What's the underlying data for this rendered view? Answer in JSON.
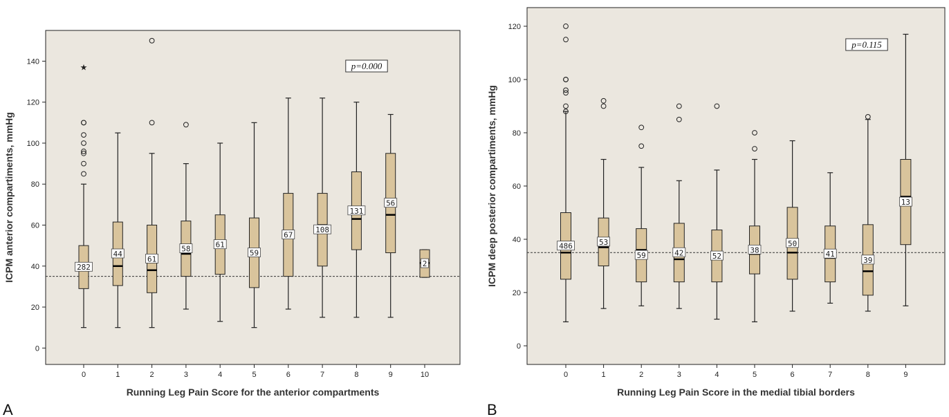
{
  "panels": [
    "A",
    "B"
  ],
  "chart_data": [
    {
      "type": "box",
      "panel": "A",
      "title": "",
      "xlabel": "Running Leg Pain Score for the anterior compartments",
      "ylabel": "ICPM anterior compartiments, mmHg",
      "ylim": [
        -8,
        155
      ],
      "yticks": [
        0,
        20,
        40,
        60,
        80,
        100,
        120,
        140
      ],
      "reference_line": 35,
      "annotation": "p=0.000",
      "categories": [
        "0",
        "1",
        "2",
        "3",
        "4",
        "5",
        "6",
        "7",
        "8",
        "9",
        "10"
      ],
      "boxes": [
        {
          "min": 10,
          "q1": 29,
          "median": 38,
          "q3": 50,
          "max": 80,
          "n": "282",
          "outliers": [
            85,
            90,
            95,
            96,
            100,
            104,
            110,
            110
          ],
          "extremes": [
            137
          ]
        },
        {
          "min": 10,
          "q1": 30.5,
          "median": 40,
          "q3": 61.5,
          "max": 105,
          "n": "44",
          "outliers": [],
          "extremes": []
        },
        {
          "min": 10,
          "q1": 27,
          "median": 38,
          "q3": 60,
          "max": 95,
          "n": "61",
          "outliers": [
            110,
            150
          ],
          "extremes": []
        },
        {
          "min": 19,
          "q1": 35,
          "median": 46,
          "q3": 62,
          "max": 90,
          "n": "58",
          "outliers": [
            109
          ],
          "extremes": []
        },
        {
          "min": 13,
          "q1": 36,
          "median": 50,
          "q3": 65,
          "max": 100,
          "n": "61",
          "outliers": [],
          "extremes": []
        },
        {
          "min": 10,
          "q1": 29.5,
          "median": 46,
          "q3": 63.5,
          "max": 110,
          "n": "59",
          "outliers": [],
          "extremes": []
        },
        {
          "min": 19,
          "q1": 35,
          "median": 56,
          "q3": 75.5,
          "max": 122,
          "n": "67",
          "outliers": [],
          "extremes": []
        },
        {
          "min": 15,
          "q1": 40,
          "median": 60,
          "q3": 75.5,
          "max": 122,
          "n": "108",
          "outliers": [],
          "extremes": []
        },
        {
          "min": 15,
          "q1": 48,
          "median": 63,
          "q3": 86,
          "max": 120,
          "n": "131",
          "outliers": [],
          "extremes": []
        },
        {
          "min": 15,
          "q1": 46.5,
          "median": 65,
          "q3": 95,
          "max": 114,
          "n": "56",
          "outliers": [],
          "extremes": []
        },
        {
          "min": 34.5,
          "q1": 34.5,
          "median": 41.5,
          "q3": 48,
          "max": 48,
          "n": "2",
          "outliers": [],
          "extremes": []
        }
      ]
    },
    {
      "type": "box",
      "panel": "B",
      "title": "",
      "xlabel": "Running Leg Pain Score in the medial tibial borders",
      "ylabel": "ICPM deep posterior compartiments, mmHg",
      "ylim": [
        -7,
        127
      ],
      "yticks": [
        0,
        20,
        40,
        60,
        80,
        100,
        120
      ],
      "reference_line": 35,
      "annotation": "p=0.115",
      "categories": [
        "0",
        "1",
        "2",
        "3",
        "4",
        "5",
        "6",
        "7",
        "8",
        "9"
      ],
      "boxes": [
        {
          "min": 9,
          "q1": 25,
          "median": 35,
          "q3": 50,
          "max": 88,
          "n": "486",
          "outliers": [
            88,
            90,
            95,
            96,
            100,
            100,
            115,
            120
          ],
          "extremes": []
        },
        {
          "min": 14,
          "q1": 30,
          "median": 37,
          "q3": 48,
          "max": 70,
          "n": "53",
          "outliers": [
            90,
            92
          ],
          "extremes": []
        },
        {
          "min": 15,
          "q1": 24,
          "median": 36,
          "q3": 44,
          "max": 67,
          "n": "59",
          "outliers": [
            75,
            82
          ],
          "extremes": []
        },
        {
          "min": 14,
          "q1": 24,
          "median": 32.5,
          "q3": 46,
          "max": 62,
          "n": "42",
          "outliers": [
            85,
            90
          ],
          "extremes": []
        },
        {
          "min": 10,
          "q1": 24,
          "median": 32.5,
          "q3": 43.5,
          "max": 66,
          "n": "52",
          "outliers": [
            90
          ],
          "extremes": []
        },
        {
          "min": 9,
          "q1": 27,
          "median": 34.5,
          "q3": 45,
          "max": 70,
          "n": "38",
          "outliers": [
            74,
            80
          ],
          "extremes": []
        },
        {
          "min": 13,
          "q1": 25,
          "median": 35,
          "q3": 52,
          "max": 77,
          "n": "50",
          "outliers": [],
          "extremes": []
        },
        {
          "min": 16,
          "q1": 24,
          "median": 33,
          "q3": 45,
          "max": 65,
          "n": "41",
          "outliers": [],
          "extremes": []
        },
        {
          "min": 13,
          "q1": 19,
          "median": 28,
          "q3": 45.5,
          "max": 85,
          "n": "39",
          "outliers": [
            86
          ],
          "extremes": []
        },
        {
          "min": 15,
          "q1": 38,
          "median": 56,
          "q3": 70,
          "max": 117,
          "n": "13",
          "outliers": [],
          "extremes": []
        }
      ]
    }
  ],
  "colors": {
    "plot_bg": "#ebe7df",
    "box_fill": "#d9c49c",
    "line": "#222222"
  }
}
